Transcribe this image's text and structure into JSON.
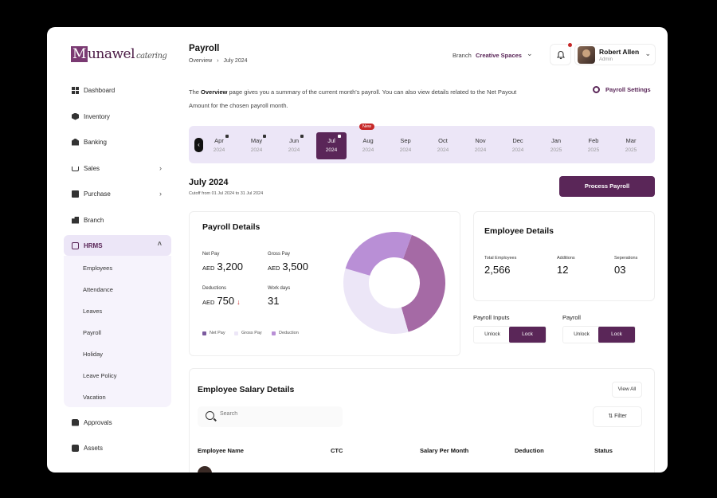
{
  "app": {
    "logo_main": "Munawel",
    "logo_sub": "catering"
  },
  "sidebar": {
    "items": [
      {
        "label": "Dashboard"
      },
      {
        "label": "Inventory"
      },
      {
        "label": "Banking"
      },
      {
        "label": "Sales"
      },
      {
        "label": "Purchase"
      },
      {
        "label": "Branch"
      },
      {
        "label": "HRMS"
      },
      {
        "label": "Approvals"
      },
      {
        "label": "Assets"
      }
    ],
    "hrms_sub": [
      "Employees",
      "Attendance",
      "Leaves",
      "Payroll",
      "Holiday",
      "Leave Policy",
      "Vacation"
    ]
  },
  "header": {
    "title": "Payroll",
    "breadcrumb": [
      "Overview",
      "July 2024"
    ],
    "branch_label": "Branch",
    "branch_value": "Creative Spaces",
    "user_name": "Robert Allen",
    "user_role": "Admin"
  },
  "intro": {
    "pre": "The ",
    "bold": "Overview",
    "post": " page gives you a summary of the current month's payroll. You can also view details related to the Net Payout Amount for the chosen payroll month."
  },
  "settings_label": "Payroll Settings",
  "months": [
    {
      "m": "Apr",
      "y": "2024"
    },
    {
      "m": "May",
      "y": "2024"
    },
    {
      "m": "Jun",
      "y": "2024"
    },
    {
      "m": "Jul",
      "y": "2024"
    },
    {
      "m": "Aug",
      "y": "2024"
    },
    {
      "m": "Sep",
      "y": "2024"
    },
    {
      "m": "Oct",
      "y": "2024"
    },
    {
      "m": "Nov",
      "y": "2024"
    },
    {
      "m": "Dec",
      "y": "2024"
    },
    {
      "m": "Jan",
      "y": "2025"
    },
    {
      "m": "Feb",
      "y": "2025"
    },
    {
      "m": "Mar",
      "y": "2025"
    }
  ],
  "new_badge": "New",
  "period": {
    "title": "July 2024",
    "cutoff": "Cutoff from 01 Jul 2024 to 31 Jul 2024"
  },
  "process_label": "Process Payroll",
  "payroll_details": {
    "title": "Payroll Details",
    "currency": "AED",
    "net_pay_label": "Net Pay",
    "net_pay": "3,200",
    "gross_pay_label": "Gross Pay",
    "gross_pay": "3,500",
    "deductions_label": "Deductions",
    "deductions": "750",
    "workdays_label": "Work days",
    "workdays": "31",
    "legend": [
      "Net Pay",
      "Gross Pay",
      "Deduction"
    ],
    "colors": [
      "#a56aa5",
      "#ece6f7",
      "#b98fd6"
    ]
  },
  "chart_data": {
    "type": "pie",
    "categories": [
      "Net Pay",
      "Gross Pay",
      "Deduction"
    ],
    "values": [
      0.4,
      0.34,
      0.26
    ]
  },
  "employee_details": {
    "title": "Employee Details",
    "total_label": "Total Employees",
    "total": "2,566",
    "additions_label": "Additions",
    "additions": "12",
    "separations_label": "Seperations",
    "separations": "03"
  },
  "payroll_inputs": {
    "title": "Payroll Inputs",
    "unlock": "Unlock",
    "lock": "Lock"
  },
  "payroll_toggle": {
    "title": "Payroll",
    "unlock": "Unlock",
    "lock": "Lock"
  },
  "salary": {
    "title": "Employee Salary Details",
    "view_all": "View All",
    "search_placeholder": "Search",
    "filter": "Filter",
    "columns": [
      "Employee Name",
      "CTC",
      "Salary Per Month",
      "Deduction",
      "Status"
    ]
  }
}
